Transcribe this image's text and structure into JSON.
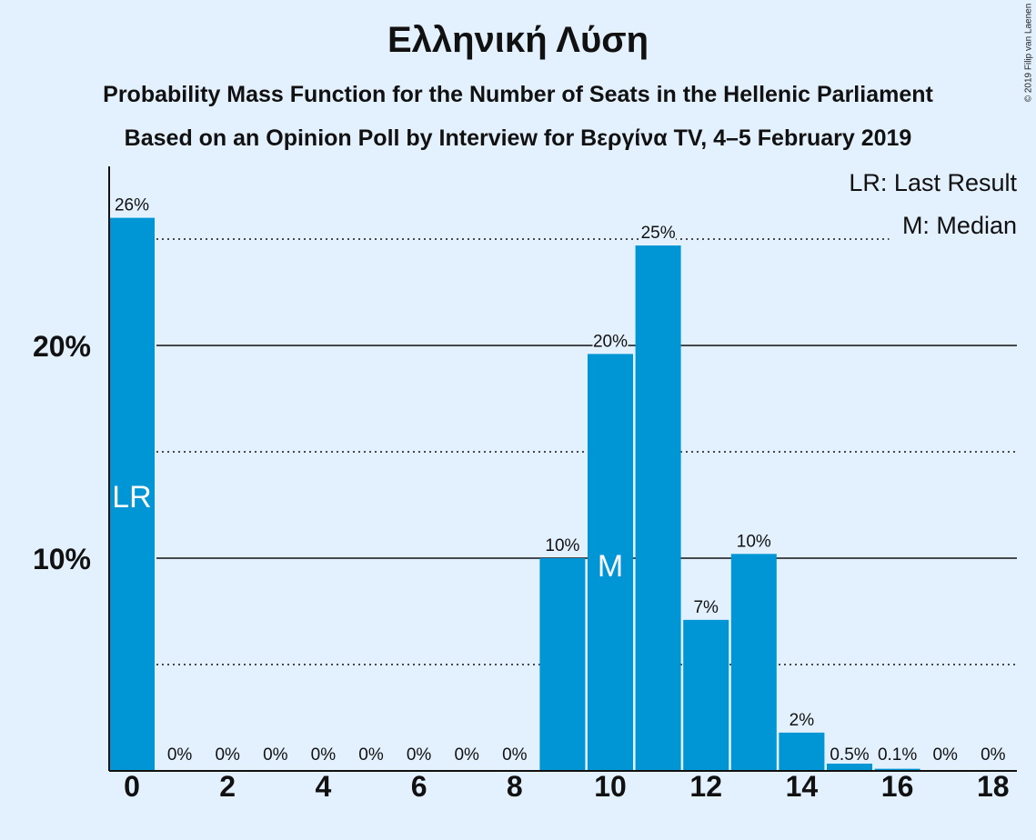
{
  "chart_data": {
    "type": "bar",
    "title": "Ελληνική Λύση",
    "subtitle": "Probability Mass Function for the Number of Seats in the Hellenic Parliament",
    "subtitle2": "Based on an Opinion Poll by Interview for Βεργίνα TV, 4–5 February 2019",
    "copyright": "© 2019 Filip van Laenen",
    "xlabel": "",
    "ylabel": "",
    "ylim": [
      0,
      28
    ],
    "x_ticks": [
      "0",
      "2",
      "4",
      "6",
      "8",
      "10",
      "12",
      "14",
      "16",
      "18"
    ],
    "y_ticks": [
      "10%",
      "20%"
    ],
    "categories": [
      0,
      1,
      2,
      3,
      4,
      5,
      6,
      7,
      8,
      9,
      10,
      11,
      12,
      13,
      14,
      15,
      16,
      17,
      18
    ],
    "values": [
      26,
      0,
      0,
      0,
      0,
      0,
      0,
      0,
      0,
      10,
      19.6,
      24.7,
      7.1,
      10.2,
      1.8,
      0.45,
      0.1,
      0,
      0
    ],
    "data_labels": [
      "26%",
      "0%",
      "0%",
      "0%",
      "0%",
      "0%",
      "0%",
      "0%",
      "0%",
      "10%",
      "20%",
      "25%",
      "7%",
      "10%",
      "2%",
      "0.5%",
      "0.1%",
      "0%",
      "0%"
    ],
    "gridlines": {
      "solid": [
        10,
        20
      ],
      "dotted": [
        5,
        15,
        25
      ]
    },
    "markers": [
      {
        "category": 0,
        "label": "LR"
      },
      {
        "category": 10,
        "label": "M"
      }
    ],
    "legend": {
      "placement": "top-right",
      "entries": [
        "LR: Last Result",
        "M: Median"
      ]
    },
    "colors": {
      "bar": "#0096d6",
      "background": "#e3f0fd",
      "text": "#111111"
    }
  }
}
